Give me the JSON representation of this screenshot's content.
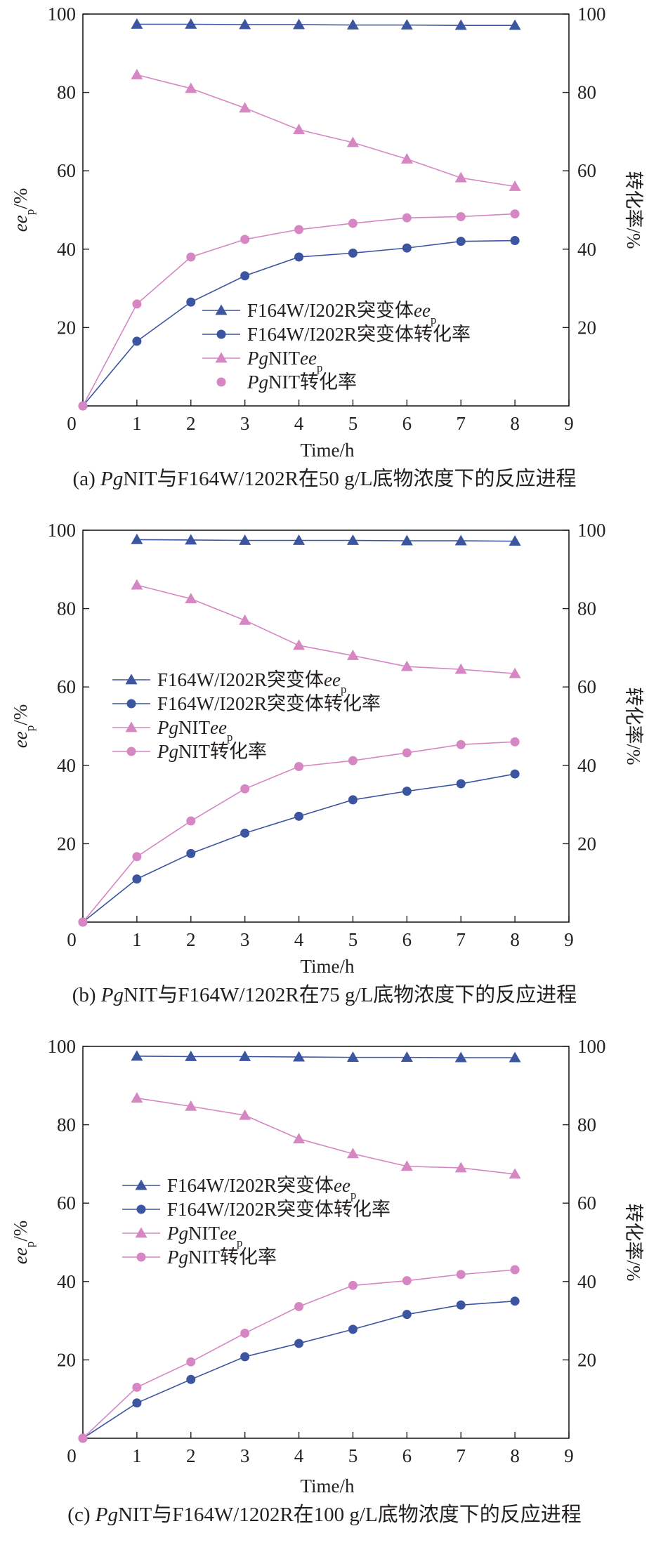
{
  "chart_data": [
    {
      "type": "line",
      "panel_label": "(a)",
      "caption_parts": [
        {
          "text": "(a) ",
          "italic": false
        },
        {
          "text": "Pg",
          "italic": true
        },
        {
          "text": "NIT与F164W/1202R在50 g/L底物浓度下的反应进程",
          "italic": false
        }
      ],
      "xlabel": "Time/h",
      "ylabel_left": {
        "base": "ee",
        "sub": "p",
        "unit": "/%"
      },
      "ylabel_right": "转化率/%",
      "xlim": [
        0,
        9
      ],
      "ylim": [
        0,
        100
      ],
      "x_ticks": [
        0,
        1,
        2,
        3,
        4,
        5,
        6,
        7,
        8,
        9
      ],
      "y_ticks": [
        0,
        20,
        40,
        60,
        80,
        100
      ],
      "y_ticks_right": [
        20,
        40,
        60,
        80,
        100
      ],
      "grid": false,
      "legend_position": "lower-right",
      "series": [
        {
          "legend": [
            {
              "t": "F164W/I202R突变体",
              "i": false
            },
            {
              "t": "ee",
              "i": true
            },
            {
              "t": "p",
              "i": false,
              "sub": true
            }
          ],
          "marker": "triangle",
          "color": "#3b55a0",
          "line": true,
          "x": [
            1,
            2,
            3,
            4,
            5,
            6,
            7,
            8
          ],
          "values": [
            97.4,
            97.4,
            97.3,
            97.3,
            97.2,
            97.2,
            97.1,
            97.1
          ]
        },
        {
          "legend": [
            {
              "t": "F164W/I202R突变体转化率",
              "i": false
            }
          ],
          "marker": "circle",
          "color": "#3b55a0",
          "line": true,
          "x": [
            0,
            1,
            2,
            3,
            4,
            5,
            6,
            7,
            8
          ],
          "values": [
            0,
            16.5,
            26.5,
            33.2,
            38,
            39,
            40.3,
            42,
            42.2
          ]
        },
        {
          "legend": [
            {
              "t": "Pg",
              "i": true
            },
            {
              "t": "NIT",
              "i": false
            },
            {
              "t": "ee",
              "i": true
            },
            {
              "t": "p",
              "i": false,
              "sub": true
            }
          ],
          "marker": "triangle",
          "color": "#d687c3",
          "line": true,
          "x": [
            1,
            2,
            3,
            4,
            5,
            6,
            7,
            8
          ],
          "values": [
            84.5,
            81,
            76,
            70.5,
            67.2,
            63,
            58.2,
            56
          ]
        },
        {
          "legend": [
            {
              "t": "Pg",
              "i": true
            },
            {
              "t": "NIT转化率",
              "i": false
            }
          ],
          "marker": "circle",
          "color": "#d687c3",
          "line": true,
          "legend_line": false,
          "x": [
            0,
            1,
            2,
            3,
            4,
            5,
            6,
            7,
            8
          ],
          "values": [
            0,
            26,
            38,
            42.5,
            45,
            46.6,
            48,
            48.3,
            49
          ]
        }
      ]
    },
    {
      "type": "line",
      "panel_label": "(b)",
      "caption_parts": [
        {
          "text": "(b) ",
          "italic": false
        },
        {
          "text": "Pg",
          "italic": true
        },
        {
          "text": "NIT与F164W/1202R在75 g/L底物浓度下的反应进程",
          "italic": false
        }
      ],
      "xlabel": "Time/h",
      "ylabel_left": {
        "base": "ee",
        "sub": "p",
        "unit": "/%"
      },
      "ylabel_right": "转化率/%",
      "xlim": [
        0,
        9
      ],
      "ylim": [
        0,
        100
      ],
      "x_ticks": [
        0,
        1,
        2,
        3,
        4,
        5,
        6,
        7,
        8,
        9
      ],
      "y_ticks": [
        0,
        20,
        40,
        60,
        80,
        100
      ],
      "y_ticks_right": [
        20,
        40,
        60,
        80,
        100
      ],
      "grid": false,
      "legend_position": "center-left",
      "series": [
        {
          "legend": [
            {
              "t": "F164W/I202R突变体",
              "i": false
            },
            {
              "t": "ee",
              "i": true
            },
            {
              "t": "p",
              "i": false,
              "sub": true
            }
          ],
          "marker": "triangle",
          "color": "#3b55a0",
          "line": true,
          "x": [
            1,
            2,
            3,
            4,
            5,
            6,
            7,
            8
          ],
          "values": [
            97.6,
            97.5,
            97.4,
            97.4,
            97.4,
            97.3,
            97.3,
            97.2
          ]
        },
        {
          "legend": [
            {
              "t": "F164W/I202R突变体转化率",
              "i": false
            }
          ],
          "marker": "circle",
          "color": "#3b55a0",
          "line": true,
          "x": [
            0,
            1,
            2,
            3,
            4,
            5,
            6,
            7,
            8
          ],
          "values": [
            0,
            11,
            17.5,
            22.7,
            27,
            31.2,
            33.4,
            35.3,
            37.8
          ]
        },
        {
          "legend": [
            {
              "t": "Pg",
              "i": true
            },
            {
              "t": "NIT",
              "i": false
            },
            {
              "t": "ee",
              "i": true
            },
            {
              "t": "p",
              "i": false,
              "sub": true
            }
          ],
          "marker": "triangle",
          "color": "#d687c3",
          "line": true,
          "x": [
            1,
            2,
            3,
            4,
            5,
            6,
            7,
            8
          ],
          "values": [
            86,
            82.5,
            77,
            70.6,
            68,
            65.2,
            64.5,
            63.4
          ]
        },
        {
          "legend": [
            {
              "t": "Pg",
              "i": true
            },
            {
              "t": "NIT转化率",
              "i": false
            }
          ],
          "marker": "circle",
          "color": "#d687c3",
          "line": true,
          "x": [
            0,
            1,
            2,
            3,
            4,
            5,
            6,
            7,
            8
          ],
          "values": [
            0,
            16.7,
            25.8,
            34,
            39.7,
            41.2,
            43.2,
            45.3,
            46
          ]
        }
      ]
    },
    {
      "type": "line",
      "panel_label": "(c)",
      "caption_parts": [
        {
          "text": "(c) ",
          "italic": false
        },
        {
          "text": "Pg",
          "italic": true
        },
        {
          "text": "NIT与F164W/1202R在100 g/L底物浓度下的反应进程",
          "italic": false
        }
      ],
      "xlabel": "Time/h",
      "ylabel_left": {
        "base": "ee",
        "sub": "p",
        "unit": "/%"
      },
      "ylabel_right": "转化率/%",
      "xlim": [
        0,
        9
      ],
      "ylim": [
        0,
        100
      ],
      "x_ticks": [
        0,
        1,
        2,
        3,
        4,
        5,
        6,
        7,
        8,
        9
      ],
      "y_ticks": [
        0,
        20,
        40,
        60,
        80,
        100
      ],
      "y_ticks_right": [
        20,
        40,
        60,
        80,
        100
      ],
      "grid": false,
      "legend_position": "center-left",
      "series": [
        {
          "legend": [
            {
              "t": "F164W/I202R突变体",
              "i": false
            },
            {
              "t": "ee",
              "i": true
            },
            {
              "t": "p",
              "i": false,
              "sub": true
            }
          ],
          "marker": "triangle",
          "color": "#3b55a0",
          "line": true,
          "x": [
            1,
            2,
            3,
            4,
            5,
            6,
            7,
            8
          ],
          "values": [
            97.5,
            97.4,
            97.4,
            97.3,
            97.2,
            97.2,
            97.1,
            97.1
          ]
        },
        {
          "legend": [
            {
              "t": "F164W/I202R突变体转化率",
              "i": false
            }
          ],
          "marker": "circle",
          "color": "#3b55a0",
          "line": true,
          "x": [
            0,
            1,
            2,
            3,
            4,
            5,
            6,
            7,
            8
          ],
          "values": [
            0,
            9,
            15,
            20.8,
            24.2,
            27.8,
            31.6,
            34,
            35
          ]
        },
        {
          "legend": [
            {
              "t": "Pg",
              "i": true
            },
            {
              "t": "NIT",
              "i": false
            },
            {
              "t": "ee",
              "i": true
            },
            {
              "t": "p",
              "i": false,
              "sub": true
            }
          ],
          "marker": "triangle",
          "color": "#d687c3",
          "line": true,
          "x": [
            1,
            2,
            3,
            4,
            5,
            6,
            7,
            8
          ],
          "values": [
            86.8,
            84.7,
            82.4,
            76.4,
            72.6,
            69.4,
            69,
            67.4
          ]
        },
        {
          "legend": [
            {
              "t": "Pg",
              "i": true
            },
            {
              "t": "NIT转化率",
              "i": false
            }
          ],
          "marker": "circle",
          "color": "#d687c3",
          "line": true,
          "x": [
            0,
            1,
            2,
            3,
            4,
            5,
            6,
            7,
            8
          ],
          "values": [
            0,
            13,
            19.5,
            26.8,
            33.6,
            39,
            40.2,
            41.8,
            43
          ]
        }
      ]
    }
  ]
}
